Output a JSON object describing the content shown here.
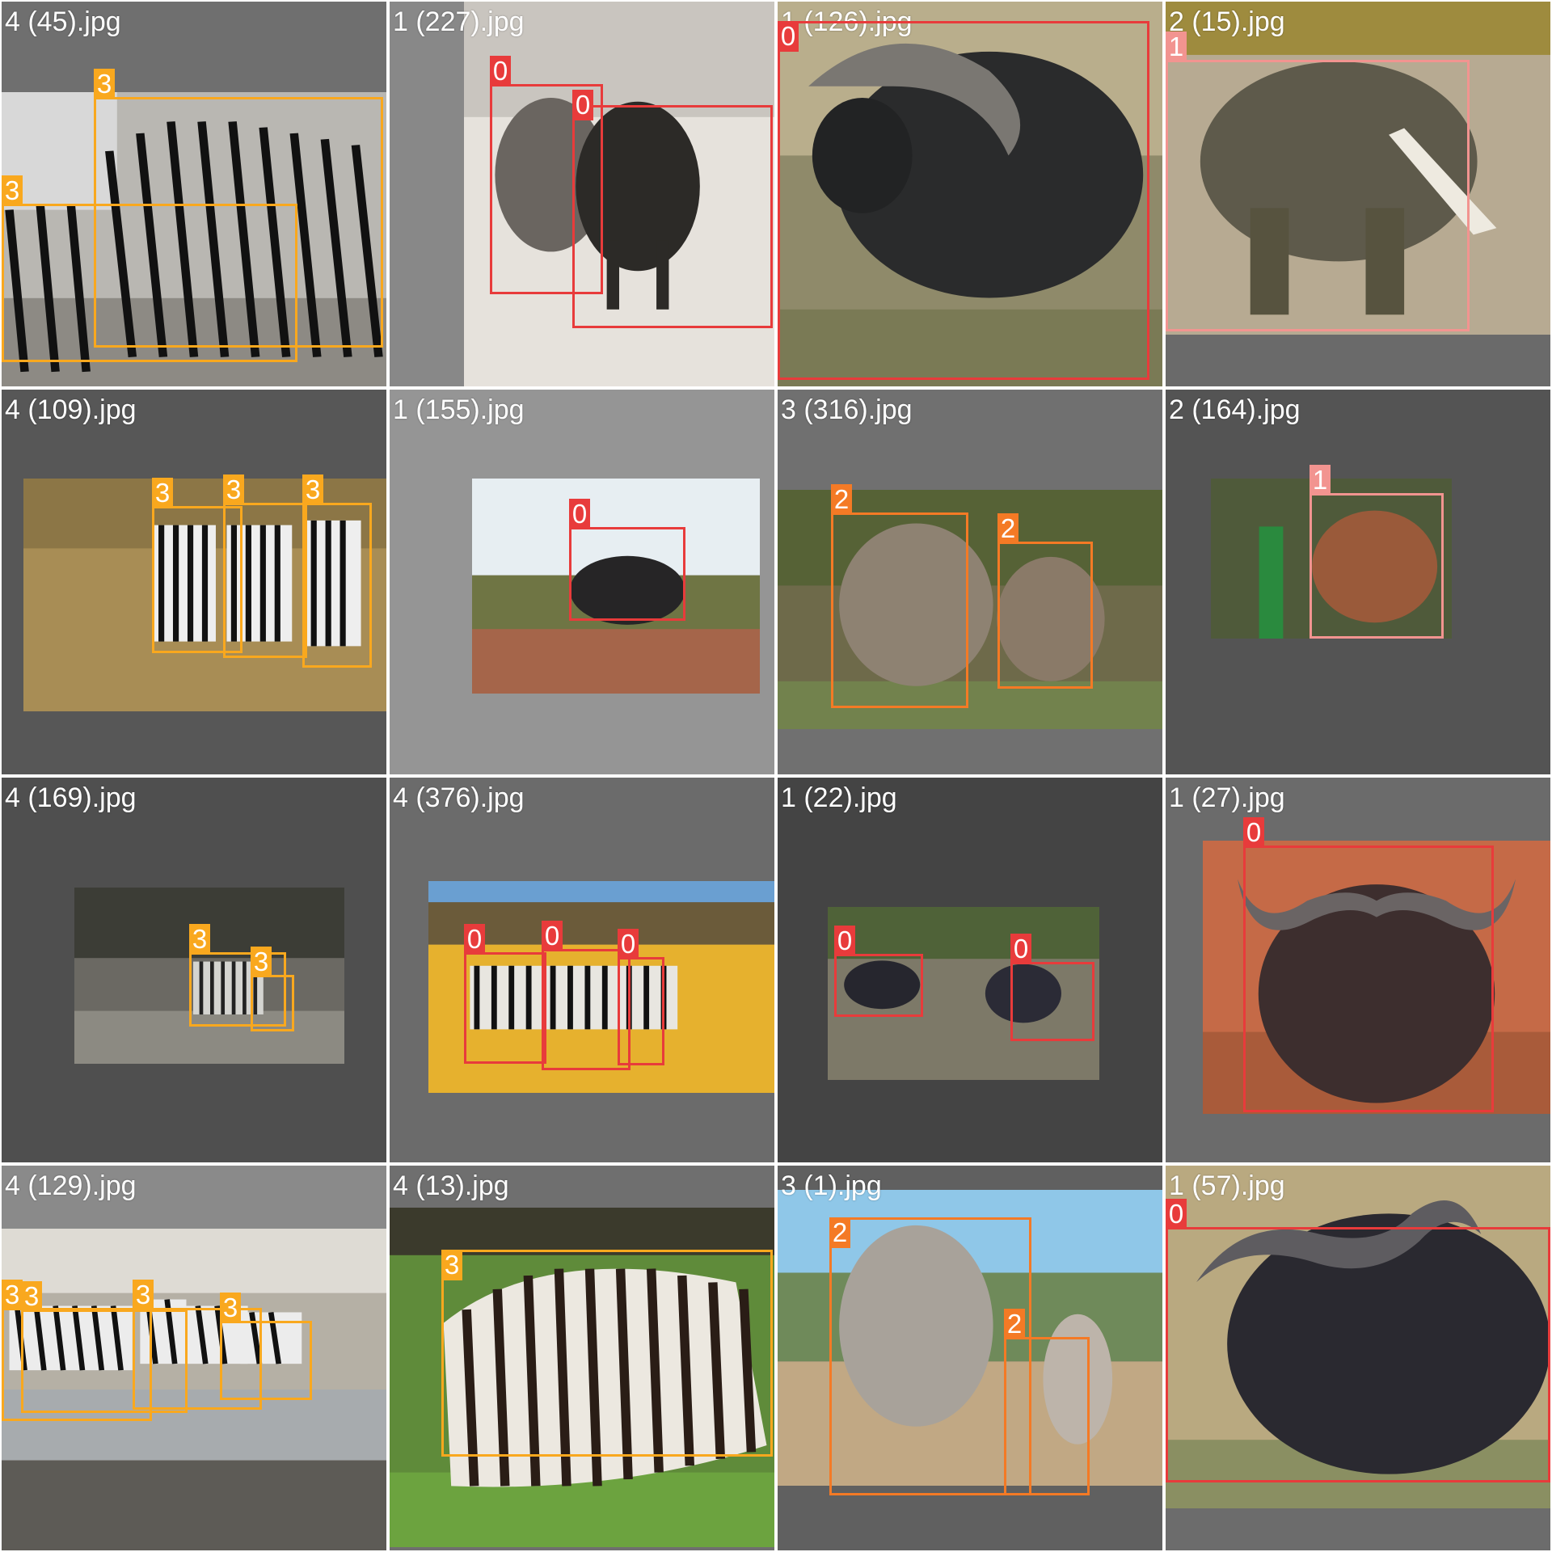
{
  "mosaic": {
    "tiles": [
      {
        "filename": "4 (45).jpg",
        "boxes": [
          {
            "label": "3"
          },
          {
            "label": "3"
          }
        ]
      },
      {
        "filename": "1 (227).jpg",
        "boxes": [
          {
            "label": "0"
          },
          {
            "label": "0"
          }
        ]
      },
      {
        "filename": "1 (126).jpg",
        "boxes": [
          {
            "label": "0"
          }
        ]
      },
      {
        "filename": "2 (15).jpg",
        "boxes": [
          {
            "label": "1"
          }
        ]
      },
      {
        "filename": "4 (109).jpg",
        "boxes": [
          {
            "label": "3"
          },
          {
            "label": "3"
          },
          {
            "label": "3"
          }
        ]
      },
      {
        "filename": "1 (155).jpg",
        "boxes": [
          {
            "label": "0"
          }
        ]
      },
      {
        "filename": "3 (316).jpg",
        "boxes": [
          {
            "label": "2"
          },
          {
            "label": "2"
          }
        ]
      },
      {
        "filename": "2 (164).jpg",
        "boxes": [
          {
            "label": "1"
          }
        ]
      },
      {
        "filename": "4 (169).jpg",
        "boxes": [
          {
            "label": "3"
          },
          {
            "label": "3"
          }
        ]
      },
      {
        "filename": "4 (376).jpg",
        "boxes": [
          {
            "label": "0"
          },
          {
            "label": "0"
          },
          {
            "label": "0"
          }
        ]
      },
      {
        "filename": "1 (22).jpg",
        "boxes": [
          {
            "label": "0"
          },
          {
            "label": "0"
          }
        ]
      },
      {
        "filename": "1 (27).jpg",
        "boxes": [
          {
            "label": "0"
          }
        ]
      },
      {
        "filename": "4 (129).jpg",
        "boxes": [
          {
            "label": "3"
          },
          {
            "label": "3"
          },
          {
            "label": "3"
          },
          {
            "label": "3"
          }
        ]
      },
      {
        "filename": "4 (13).jpg",
        "boxes": [
          {
            "label": "3"
          }
        ]
      },
      {
        "filename": "3 (1).jpg",
        "boxes": [
          {
            "label": "2"
          },
          {
            "label": "2"
          }
        ]
      },
      {
        "filename": "1 (57).jpg",
        "boxes": [
          {
            "label": "0"
          }
        ]
      }
    ]
  },
  "class_colors": {
    "0": "#e83b3b",
    "1": "#f29490",
    "2": "#f47a25",
    "3": "#f9a81e"
  }
}
